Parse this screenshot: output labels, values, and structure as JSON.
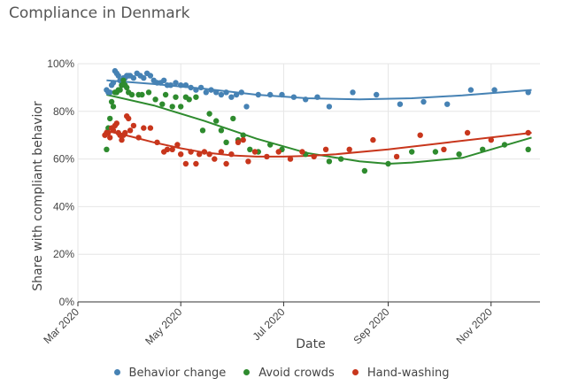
{
  "title": "Compliance in Denmark",
  "chart_data": {
    "type": "scatter",
    "title": "Compliance in Denmark",
    "xlabel": "Date",
    "ylabel": "Share with compliant behavior",
    "xlim": [
      "2020-03-01",
      "2020-11-30"
    ],
    "ylim": [
      0,
      100
    ],
    "x_ticks": [
      {
        "date": "2020-03-01",
        "label": "Mar 2020"
      },
      {
        "date": "2020-05-01",
        "label": "May 2020"
      },
      {
        "date": "2020-07-01",
        "label": "Jul 2020"
      },
      {
        "date": "2020-09-01",
        "label": "Sep 2020"
      },
      {
        "date": "2020-11-01",
        "label": "Nov 2020"
      }
    ],
    "y_ticks": [
      {
        "value": 0,
        "label": "0%"
      },
      {
        "value": 20,
        "label": "20%"
      },
      {
        "value": 40,
        "label": "40%"
      },
      {
        "value": 60,
        "label": "60%"
      },
      {
        "value": 80,
        "label": "80%"
      },
      {
        "value": 100,
        "label": "100%"
      }
    ],
    "grid": true,
    "legend_position": "bottom",
    "series": [
      {
        "name": "Behavior change",
        "color": "#4682b4",
        "points": [
          [
            "2020-03-18",
            89
          ],
          [
            "2020-03-19",
            88
          ],
          [
            "2020-03-20",
            88
          ],
          [
            "2020-03-21",
            91
          ],
          [
            "2020-03-22",
            92
          ],
          [
            "2020-03-23",
            97
          ],
          [
            "2020-03-24",
            96
          ],
          [
            "2020-03-25",
            95
          ],
          [
            "2020-03-26",
            93
          ],
          [
            "2020-03-27",
            91
          ],
          [
            "2020-03-28",
            94
          ],
          [
            "2020-03-29",
            94
          ],
          [
            "2020-03-30",
            95
          ],
          [
            "2020-03-31",
            95
          ],
          [
            "2020-04-01",
            95
          ],
          [
            "2020-04-03",
            94
          ],
          [
            "2020-04-05",
            96
          ],
          [
            "2020-04-07",
            95
          ],
          [
            "2020-04-09",
            94
          ],
          [
            "2020-04-11",
            96
          ],
          [
            "2020-04-13",
            95
          ],
          [
            "2020-04-15",
            93
          ],
          [
            "2020-04-17",
            92
          ],
          [
            "2020-04-19",
            92
          ],
          [
            "2020-04-21",
            93
          ],
          [
            "2020-04-23",
            91
          ],
          [
            "2020-04-25",
            91
          ],
          [
            "2020-04-28",
            92
          ],
          [
            "2020-05-01",
            91
          ],
          [
            "2020-05-04",
            91
          ],
          [
            "2020-05-07",
            90
          ],
          [
            "2020-05-10",
            89
          ],
          [
            "2020-05-13",
            90
          ],
          [
            "2020-05-16",
            88
          ],
          [
            "2020-05-19",
            89
          ],
          [
            "2020-05-22",
            88
          ],
          [
            "2020-05-25",
            87
          ],
          [
            "2020-05-28",
            88
          ],
          [
            "2020-05-31",
            86
          ],
          [
            "2020-06-03",
            87
          ],
          [
            "2020-06-06",
            88
          ],
          [
            "2020-06-09",
            82
          ],
          [
            "2020-06-16",
            87
          ],
          [
            "2020-06-23",
            87
          ],
          [
            "2020-06-30",
            87
          ],
          [
            "2020-07-07",
            86
          ],
          [
            "2020-07-14",
            85
          ],
          [
            "2020-07-21",
            86
          ],
          [
            "2020-07-28",
            82
          ],
          [
            "2020-08-11",
            88
          ],
          [
            "2020-08-25",
            87
          ],
          [
            "2020-09-08",
            83
          ],
          [
            "2020-09-22",
            84
          ],
          [
            "2020-10-06",
            83
          ],
          [
            "2020-10-20",
            89
          ],
          [
            "2020-11-03",
            89
          ],
          [
            "2020-11-23",
            88
          ]
        ],
        "trend": [
          [
            "2020-03-18",
            93
          ],
          [
            "2020-04-15",
            91.5
          ],
          [
            "2020-05-15",
            89.5
          ],
          [
            "2020-06-15",
            87
          ],
          [
            "2020-07-15",
            85.5
          ],
          [
            "2020-08-15",
            85
          ],
          [
            "2020-09-15",
            85.5
          ],
          [
            "2020-10-15",
            86.7
          ],
          [
            "2020-11-25",
            89
          ]
        ]
      },
      {
        "name": "Avoid crowds",
        "color": "#2e8b2e",
        "points": [
          [
            "2020-03-18",
            64
          ],
          [
            "2020-03-19",
            73
          ],
          [
            "2020-03-20",
            77
          ],
          [
            "2020-03-21",
            84
          ],
          [
            "2020-03-22",
            82
          ],
          [
            "2020-03-23",
            88
          ],
          [
            "2020-03-24",
            88
          ],
          [
            "2020-03-25",
            89
          ],
          [
            "2020-03-26",
            89
          ],
          [
            "2020-03-27",
            91
          ],
          [
            "2020-03-28",
            93
          ],
          [
            "2020-03-29",
            91
          ],
          [
            "2020-03-30",
            90
          ],
          [
            "2020-03-31",
            88
          ],
          [
            "2020-04-02",
            87
          ],
          [
            "2020-04-06",
            87
          ],
          [
            "2020-04-08",
            87
          ],
          [
            "2020-04-12",
            88
          ],
          [
            "2020-04-16",
            85
          ],
          [
            "2020-04-20",
            83
          ],
          [
            "2020-04-22",
            87
          ],
          [
            "2020-04-26",
            82
          ],
          [
            "2020-04-28",
            86
          ],
          [
            "2020-05-01",
            82
          ],
          [
            "2020-05-04",
            86
          ],
          [
            "2020-05-06",
            85
          ],
          [
            "2020-05-10",
            86
          ],
          [
            "2020-05-14",
            72
          ],
          [
            "2020-05-18",
            79
          ],
          [
            "2020-05-22",
            76
          ],
          [
            "2020-05-25",
            72
          ],
          [
            "2020-05-28",
            67
          ],
          [
            "2020-06-01",
            77
          ],
          [
            "2020-06-04",
            68
          ],
          [
            "2020-06-07",
            70
          ],
          [
            "2020-06-11",
            64
          ],
          [
            "2020-06-16",
            63
          ],
          [
            "2020-06-23",
            66
          ],
          [
            "2020-06-30",
            64
          ],
          [
            "2020-07-14",
            62
          ],
          [
            "2020-07-28",
            59
          ],
          [
            "2020-08-04",
            60
          ],
          [
            "2020-08-18",
            55
          ],
          [
            "2020-09-01",
            58
          ],
          [
            "2020-09-15",
            63
          ],
          [
            "2020-09-29",
            63
          ],
          [
            "2020-10-13",
            62
          ],
          [
            "2020-10-27",
            64
          ],
          [
            "2020-11-09",
            66
          ],
          [
            "2020-11-23",
            64
          ]
        ],
        "trend": [
          [
            "2020-03-18",
            87
          ],
          [
            "2020-04-15",
            82.5
          ],
          [
            "2020-05-15",
            76
          ],
          [
            "2020-06-15",
            68.5
          ],
          [
            "2020-07-15",
            62.5
          ],
          [
            "2020-08-15",
            59
          ],
          [
            "2020-09-01",
            58
          ],
          [
            "2020-09-15",
            58.5
          ],
          [
            "2020-10-15",
            60.5
          ],
          [
            "2020-11-25",
            69
          ]
        ]
      },
      {
        "name": "Hand-washing",
        "color": "#c8361c",
        "points": [
          [
            "2020-03-17",
            70
          ],
          [
            "2020-03-18",
            71
          ],
          [
            "2020-03-19",
            71
          ],
          [
            "2020-03-20",
            69
          ],
          [
            "2020-03-21",
            73
          ],
          [
            "2020-03-22",
            72
          ],
          [
            "2020-03-23",
            74
          ],
          [
            "2020-03-24",
            75
          ],
          [
            "2020-03-25",
            71
          ],
          [
            "2020-03-26",
            70
          ],
          [
            "2020-03-27",
            68
          ],
          [
            "2020-03-28",
            70
          ],
          [
            "2020-03-29",
            71
          ],
          [
            "2020-03-30",
            78
          ],
          [
            "2020-03-31",
            77
          ],
          [
            "2020-04-01",
            72
          ],
          [
            "2020-04-03",
            74
          ],
          [
            "2020-04-06",
            69
          ],
          [
            "2020-04-09",
            73
          ],
          [
            "2020-04-13",
            73
          ],
          [
            "2020-04-17",
            67
          ],
          [
            "2020-04-21",
            63
          ],
          [
            "2020-04-23",
            64
          ],
          [
            "2020-04-26",
            64
          ],
          [
            "2020-04-29",
            66
          ],
          [
            "2020-05-01",
            62
          ],
          [
            "2020-05-04",
            58
          ],
          [
            "2020-05-07",
            63
          ],
          [
            "2020-05-10",
            58
          ],
          [
            "2020-05-12",
            62
          ],
          [
            "2020-05-15",
            63
          ],
          [
            "2020-05-18",
            62
          ],
          [
            "2020-05-21",
            60
          ],
          [
            "2020-05-25",
            63
          ],
          [
            "2020-05-28",
            58
          ],
          [
            "2020-05-31",
            62
          ],
          [
            "2020-06-04",
            67
          ],
          [
            "2020-06-07",
            68
          ],
          [
            "2020-06-10",
            59
          ],
          [
            "2020-06-14",
            63
          ],
          [
            "2020-06-21",
            61
          ],
          [
            "2020-06-28",
            63
          ],
          [
            "2020-07-05",
            60
          ],
          [
            "2020-07-12",
            63
          ],
          [
            "2020-07-19",
            61
          ],
          [
            "2020-07-26",
            64
          ],
          [
            "2020-08-09",
            64
          ],
          [
            "2020-08-23",
            68
          ],
          [
            "2020-09-06",
            61
          ],
          [
            "2020-09-20",
            70
          ],
          [
            "2020-10-04",
            64
          ],
          [
            "2020-10-18",
            71
          ],
          [
            "2020-11-01",
            68
          ],
          [
            "2020-11-23",
            71
          ]
        ],
        "trend": [
          [
            "2020-03-17",
            72
          ],
          [
            "2020-04-01",
            69.5
          ],
          [
            "2020-04-15",
            67
          ],
          [
            "2020-05-01",
            64.5
          ],
          [
            "2020-05-15",
            62.7
          ],
          [
            "2020-06-01",
            61.5
          ],
          [
            "2020-06-15",
            61
          ],
          [
            "2020-07-01",
            61
          ],
          [
            "2020-07-15",
            61.3
          ],
          [
            "2020-08-01",
            62
          ],
          [
            "2020-09-01",
            64
          ],
          [
            "2020-10-01",
            66.5
          ],
          [
            "2020-11-25",
            71
          ]
        ]
      }
    ]
  }
}
